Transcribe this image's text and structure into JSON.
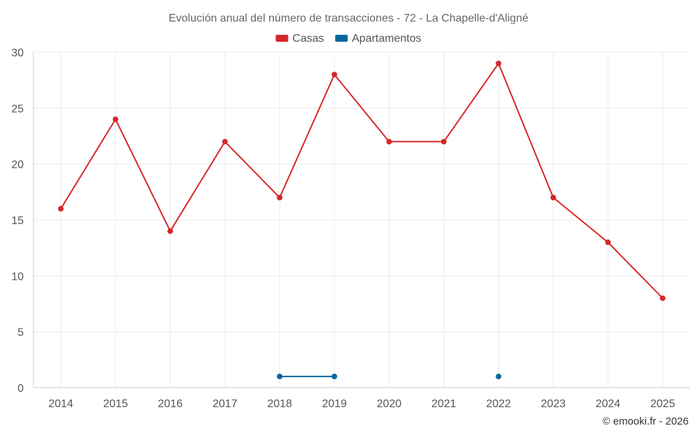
{
  "chart_data": {
    "type": "line",
    "title": "Evolución anual del número de transacciones - 72 - La Chapelle-d'Aligné",
    "categories": [
      "2014",
      "2015",
      "2016",
      "2017",
      "2018",
      "2019",
      "2020",
      "2021",
      "2022",
      "2023",
      "2024",
      "2025"
    ],
    "ylim": [
      0,
      30
    ],
    "yticks": [
      0,
      5,
      10,
      15,
      20,
      25,
      30
    ],
    "grid": true,
    "legend_position": "top-center",
    "series": [
      {
        "name": "Casas",
        "color": "#d62728",
        "values": [
          16,
          24,
          14,
          22,
          17,
          28,
          22,
          22,
          29,
          17,
          13,
          8
        ]
      },
      {
        "name": "Apartamentos",
        "color": "#08679c",
        "values": [
          null,
          null,
          null,
          null,
          1,
          1,
          null,
          null,
          1,
          null,
          null,
          null
        ]
      }
    ]
  },
  "credit": "© emooki.fr - 2026"
}
